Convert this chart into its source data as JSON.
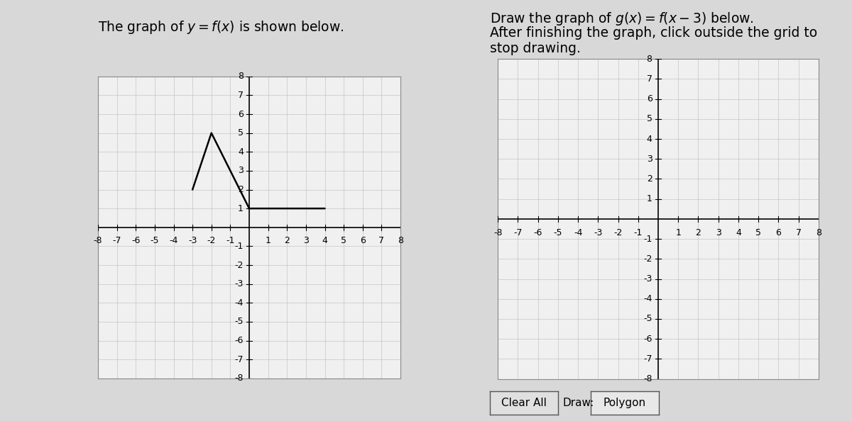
{
  "bg_color": "#d8d8d8",
  "grid_bg": "#f0f0f0",
  "grid_color": "#bbbbbb",
  "axis_color": "#000000",
  "line_color": "#000000",
  "text_color": "#000000",
  "left_title": "The graph of $y = f(x)$ is shown below.",
  "right_title_line1": "Draw the graph of $g(x) = f(x - 3)$ below.",
  "right_title_line2": "After finishing the graph, click outside the grid to",
  "right_title_line3": "stop drawing.",
  "fx_points": [
    [
      -3,
      2
    ],
    [
      -2,
      5
    ],
    [
      0,
      1
    ],
    [
      4,
      1
    ]
  ],
  "gx_points": [],
  "axis_range": [
    -8,
    8
  ],
  "title_fontsize": 13.5,
  "tick_fontsize": 9,
  "line_width": 1.8,
  "btn_clear": "Clear All",
  "btn_draw": "Draw:",
  "btn_polygon": "Polygon"
}
